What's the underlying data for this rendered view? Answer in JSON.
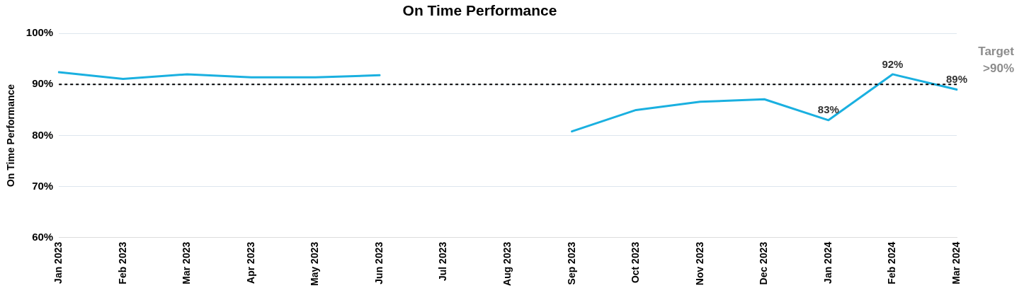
{
  "chart_data": {
    "type": "line",
    "title": "On Time Performance",
    "ylabel": "On Time Performance",
    "categories": [
      "Jan 2023",
      "Feb 2023",
      "Mar 2023",
      "Apr 2023",
      "May 2023",
      "Jun 2023",
      "Jul 2023",
      "Aug 2023",
      "Sep 2023",
      "Oct 2023",
      "Nov 2023",
      "Dec 2023",
      "Jan 2024",
      "Feb 2024",
      "Mar 2024"
    ],
    "series": [
      {
        "color": "#1ab0e0",
        "values": [
          92.4,
          91.1,
          92.0,
          91.4,
          91.4,
          91.8,
          null,
          null,
          80.8,
          85.0,
          86.6,
          87.1,
          83,
          92,
          89
        ],
        "value_labels": [
          null,
          null,
          null,
          null,
          null,
          null,
          null,
          null,
          null,
          null,
          null,
          null,
          "83%",
          "92%",
          "89%"
        ]
      }
    ],
    "ylim": [
      60,
      100
    ],
    "yticks": [
      {
        "value": 60,
        "label": "60%"
      },
      {
        "value": 70,
        "label": "70%"
      },
      {
        "value": 80,
        "label": "80%"
      },
      {
        "value": 90,
        "label": "90%"
      },
      {
        "value": 100,
        "label": "100%"
      }
    ],
    "grid": "y",
    "legend": false,
    "marker": "none",
    "line_style": "solid",
    "ref_lines": [
      {
        "axis": "y",
        "value": 90,
        "label": "Target\n>90%",
        "color": "#000000",
        "line_style": "dashed"
      }
    ]
  }
}
